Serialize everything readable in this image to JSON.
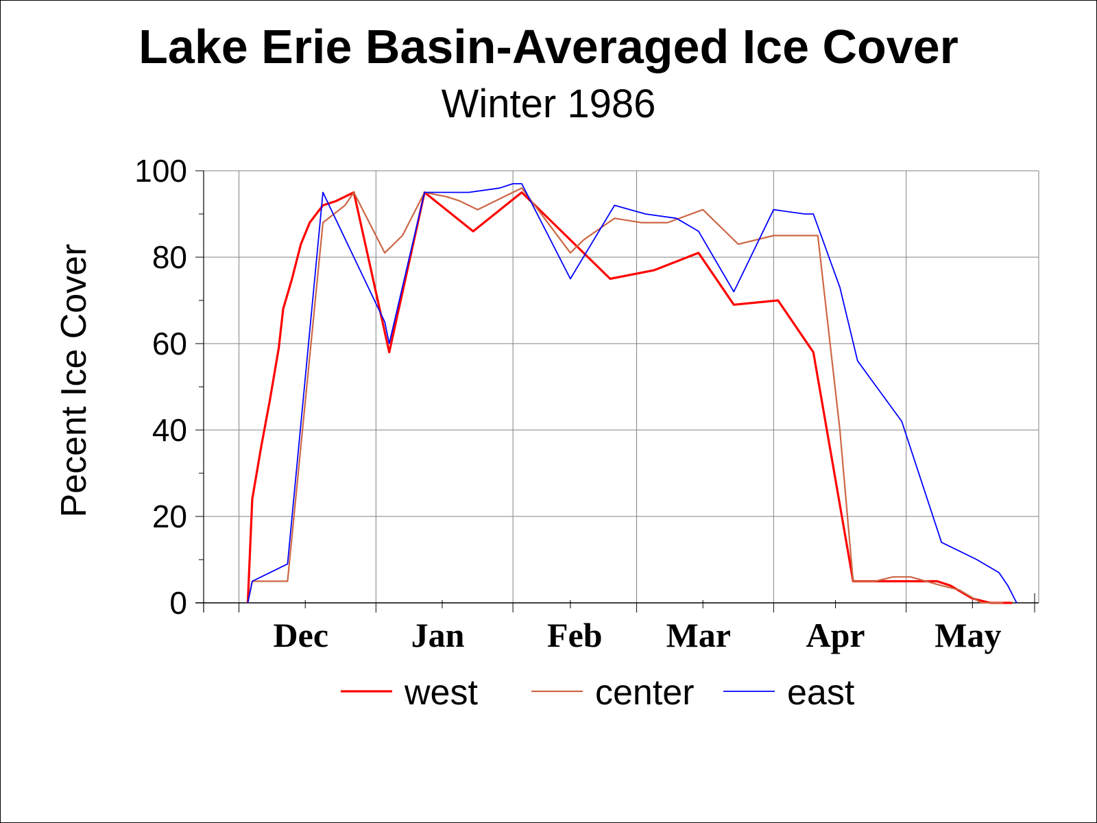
{
  "chart_data": {
    "type": "line",
    "title": "Lake Erie Basin-Averaged Ice Cover",
    "subtitle": "Winter 1986",
    "xlabel": "",
    "ylabel": "Pecent Ice Cover",
    "ylim": [
      0,
      100
    ],
    "yticks": [
      0,
      20,
      40,
      60,
      80,
      100
    ],
    "xlim": [
      "Nov 23",
      "May 31"
    ],
    "month_labels": [
      "Dec",
      "Jan",
      "Feb",
      "Mar",
      "Apr",
      "May"
    ],
    "grid": true,
    "legend": "bottom",
    "colors": {
      "west": "#ff0000",
      "center": "#cc6644",
      "east": "#0000ff"
    },
    "series": [
      {
        "name": "west",
        "color": "#ff0000",
        "points": [
          [
            "Dec 3",
            0
          ],
          [
            "Dec 4",
            24
          ],
          [
            "Dec 6",
            36
          ],
          [
            "Dec 8",
            47
          ],
          [
            "Dec 10",
            59
          ],
          [
            "Dec 11",
            68
          ],
          [
            "Dec 13",
            75
          ],
          [
            "Dec 15",
            83
          ],
          [
            "Dec 17",
            88
          ],
          [
            "Dec 20",
            92
          ],
          [
            "Dec 23",
            93
          ],
          [
            "Dec 27",
            95
          ],
          [
            "Jan 4",
            58
          ],
          [
            "Jan 12",
            95
          ],
          [
            "Jan 23",
            86
          ],
          [
            "Feb 3",
            95
          ],
          [
            "Feb 13",
            85
          ],
          [
            "Feb 23",
            75
          ],
          [
            "Mar 5",
            77
          ],
          [
            "Mar 15",
            81
          ],
          [
            "Mar 23",
            69
          ],
          [
            "Apr 2",
            70
          ],
          [
            "Apr 10",
            58
          ],
          [
            "Apr 19",
            5
          ],
          [
            "Apr 27",
            5
          ],
          [
            "May 8",
            5
          ],
          [
            "May 11",
            4
          ],
          [
            "May 16",
            1
          ],
          [
            "May 20",
            0
          ],
          [
            "May 25",
            0
          ]
        ]
      },
      {
        "name": "center",
        "color": "#cc6644",
        "points": [
          [
            "Dec 3",
            0
          ],
          [
            "Dec 4",
            5
          ],
          [
            "Dec 12",
            5
          ],
          [
            "Dec 20",
            88
          ],
          [
            "Dec 25",
            92
          ],
          [
            "Dec 27",
            95
          ],
          [
            "Jan 3",
            81
          ],
          [
            "Jan 7",
            85
          ],
          [
            "Jan 10",
            91
          ],
          [
            "Jan 12",
            95
          ],
          [
            "Jan 17",
            94
          ],
          [
            "Jan 20",
            93
          ],
          [
            "Jan 24",
            91
          ],
          [
            "Jan 30",
            94
          ],
          [
            "Feb 3",
            96
          ],
          [
            "Feb 14",
            81
          ],
          [
            "Feb 17",
            84
          ],
          [
            "Feb 24",
            89
          ],
          [
            "Mar 2",
            88
          ],
          [
            "Mar 8",
            88
          ],
          [
            "Mar 16",
            91
          ],
          [
            "Mar 24",
            83
          ],
          [
            "Apr 1",
            85
          ],
          [
            "Apr 9",
            85
          ],
          [
            "Apr 11",
            85
          ],
          [
            "Apr 16",
            40
          ],
          [
            "Apr 19",
            5
          ],
          [
            "Apr 24",
            5
          ],
          [
            "Apr 28",
            6
          ],
          [
            "May 2",
            6
          ],
          [
            "May 9",
            4
          ],
          [
            "May 13",
            3
          ],
          [
            "May 18",
            0
          ],
          [
            "May 23",
            0
          ]
        ]
      },
      {
        "name": "east",
        "color": "#0000ff",
        "points": [
          [
            "Dec 3",
            0
          ],
          [
            "Dec 4",
            5
          ],
          [
            "Dec 12",
            9
          ],
          [
            "Dec 20",
            95
          ],
          [
            "Dec 27",
            80
          ],
          [
            "Jan 3",
            65
          ],
          [
            "Jan 4",
            60
          ],
          [
            "Jan 12",
            95
          ],
          [
            "Jan 22",
            95
          ],
          [
            "Jan 29",
            96
          ],
          [
            "Feb 1",
            97
          ],
          [
            "Feb 3",
            97
          ],
          [
            "Feb 14",
            75
          ],
          [
            "Feb 24",
            92
          ],
          [
            "Mar 3",
            90
          ],
          [
            "Mar 10",
            89
          ],
          [
            "Mar 15",
            86
          ],
          [
            "Mar 23",
            72
          ],
          [
            "Apr 1",
            91
          ],
          [
            "Apr 8",
            90
          ],
          [
            "Apr 10",
            90
          ],
          [
            "Apr 16",
            73
          ],
          [
            "Apr 20",
            56
          ],
          [
            "Apr 30",
            42
          ],
          [
            "May 9",
            14
          ],
          [
            "May 17",
            10
          ],
          [
            "May 22",
            7
          ],
          [
            "May 24",
            4
          ],
          [
            "May 26",
            0
          ]
        ]
      }
    ]
  }
}
